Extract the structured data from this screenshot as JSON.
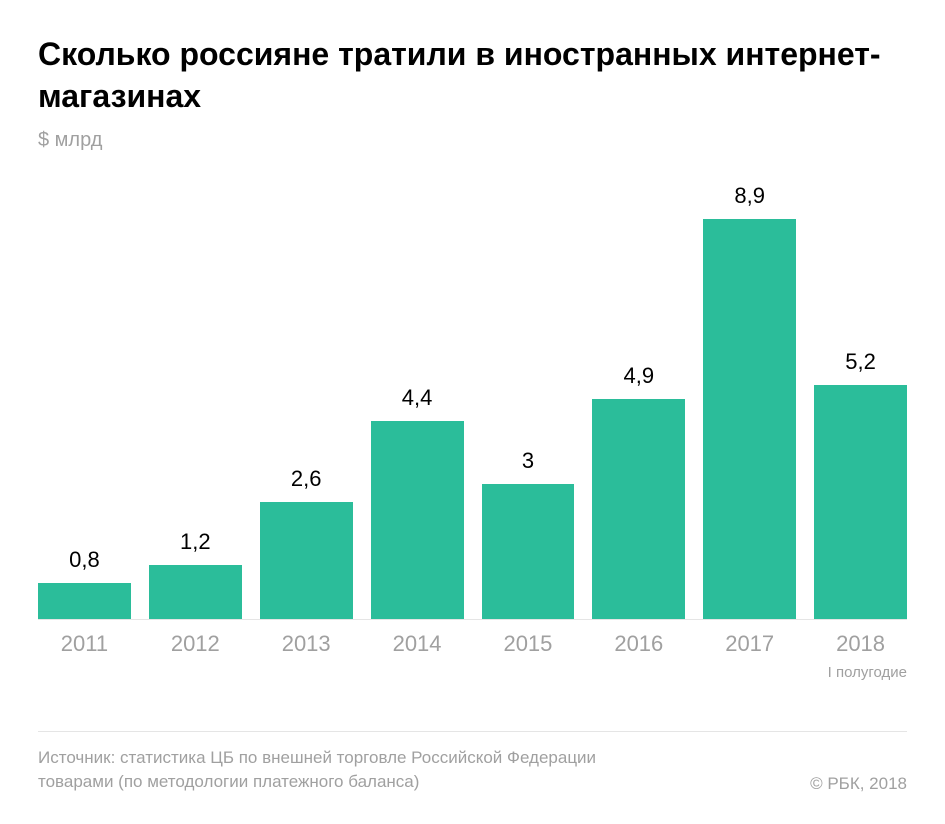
{
  "title": "Сколько россияне тратили в иностранных интернет-магазинах",
  "subtitle": "$ млрд",
  "chart": {
    "type": "bar",
    "bar_color": "#2bbd9a",
    "background_color": "#ffffff",
    "axis_color": "#e5e5e5",
    "label_color": "#a0a0a0",
    "value_color": "#000000",
    "value_fontsize": 22,
    "label_fontsize": 22,
    "title_fontsize": 32,
    "subtitle_fontsize": 20,
    "ymax": 8.9,
    "bar_gap": 18,
    "bars": [
      {
        "category": "2011",
        "value_label": "0,8",
        "value": 0.8
      },
      {
        "category": "2012",
        "value_label": "1,2",
        "value": 1.2
      },
      {
        "category": "2013",
        "value_label": "2,6",
        "value": 2.6
      },
      {
        "category": "2014",
        "value_label": "4,4",
        "value": 4.4
      },
      {
        "category": "2015",
        "value_label": "3",
        "value": 3.0
      },
      {
        "category": "2016",
        "value_label": "4,9",
        "value": 4.9
      },
      {
        "category": "2017",
        "value_label": "8,9",
        "value": 8.9
      },
      {
        "category": "2018",
        "value_label": "5,2",
        "value": 5.2,
        "subcategory": "I полугодие"
      }
    ]
  },
  "source": "Источник: статистика ЦБ по внешней торговле Российской Федерации товарами (по методологии платежного баланса)",
  "copyright": "© РБК, 2018"
}
